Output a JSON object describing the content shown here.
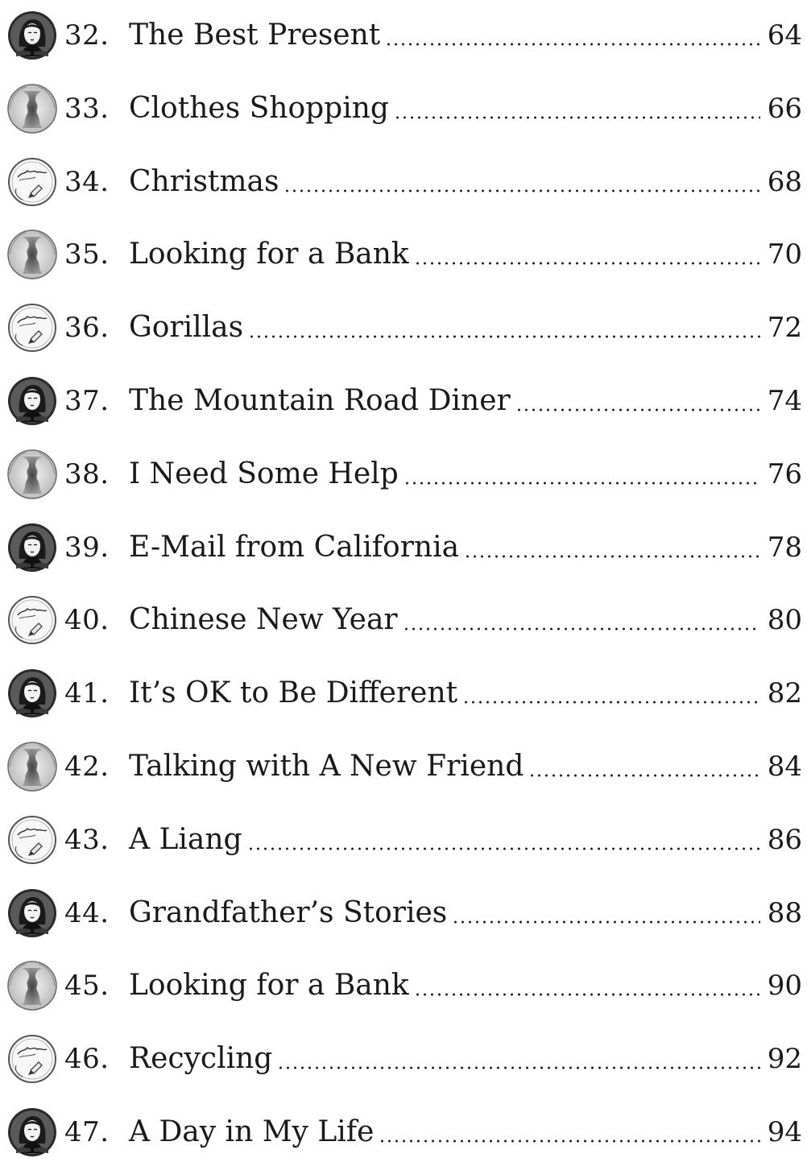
{
  "toc": {
    "entries": [
      {
        "number": "32.",
        "title": "The Best Present",
        "page": "64",
        "icon": "girl-portrait-icon"
      },
      {
        "number": "33.",
        "title": "Clothes Shopping",
        "page": "66",
        "icon": "two-faces-icon"
      },
      {
        "number": "34.",
        "title": "Christmas",
        "page": "68",
        "icon": "article-pencil-icon"
      },
      {
        "number": "35.",
        "title": "Looking for a Bank",
        "page": "70",
        "icon": "two-faces-icon"
      },
      {
        "number": "36.",
        "title": "Gorillas",
        "page": "72",
        "icon": "article-pencil-icon"
      },
      {
        "number": "37.",
        "title": "The Mountain Road Diner",
        "page": "74",
        "icon": "girl-portrait-icon"
      },
      {
        "number": "38.",
        "title": "I Need Some Help",
        "page": "76",
        "icon": "two-faces-icon"
      },
      {
        "number": "39.",
        "title": "E-Mail from California",
        "page": "78",
        "icon": "girl-portrait-icon"
      },
      {
        "number": "40.",
        "title": "Chinese New Year",
        "page": "80",
        "icon": "article-pencil-icon"
      },
      {
        "number": "41.",
        "title": "It’s OK to Be Different",
        "page": "82",
        "icon": "girl-portrait-icon"
      },
      {
        "number": "42.",
        "title": "Talking with A New Friend",
        "page": "84",
        "icon": "two-faces-icon"
      },
      {
        "number": "43.",
        "title": "A Liang",
        "page": "86",
        "icon": "article-pencil-icon"
      },
      {
        "number": "44.",
        "title": "Grandfather’s Stories",
        "page": "88",
        "icon": "girl-portrait-icon"
      },
      {
        "number": "45.",
        "title": "Looking for a Bank",
        "page": "90",
        "icon": "two-faces-icon"
      },
      {
        "number": "46.",
        "title": "Recycling",
        "page": "92",
        "icon": "article-pencil-icon"
      },
      {
        "number": "47.",
        "title": "A Day in My Life",
        "page": "94",
        "icon": "girl-portrait-icon"
      }
    ]
  }
}
